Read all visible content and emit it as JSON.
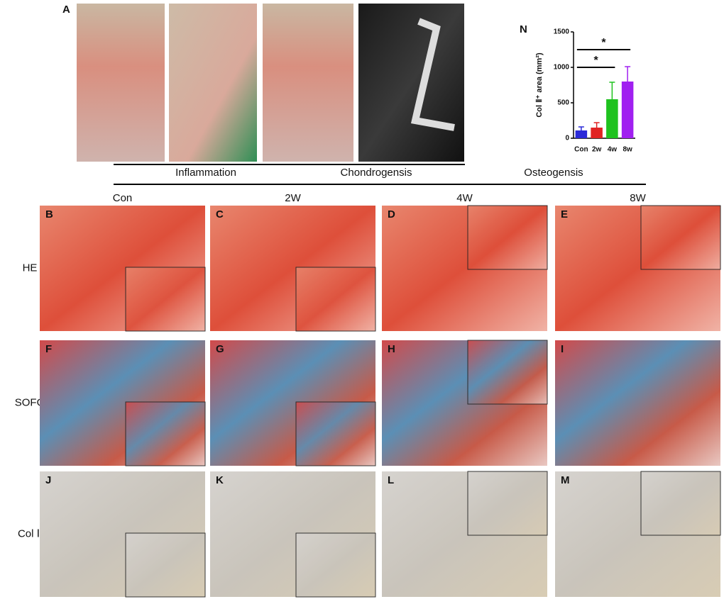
{
  "panel_a": "A",
  "stages": [
    "Inflammation",
    "Chondrogensis",
    "Osteogensis"
  ],
  "columns": [
    "Con",
    "2W",
    "4W",
    "8W"
  ],
  "rows": [
    "HE",
    "SOFG",
    "Col Ⅱ"
  ],
  "panels": [
    [
      "B",
      "C",
      "D",
      "E"
    ],
    [
      "F",
      "G",
      "H",
      "I"
    ],
    [
      "J",
      "K",
      "L",
      "M"
    ]
  ],
  "chart_data": {
    "type": "bar",
    "panel_label": "N",
    "y_label": "Col Ⅱ⁺ area (mm²)",
    "categories": [
      "Con",
      "2w",
      "4w",
      "8w"
    ],
    "values": [
      110,
      150,
      550,
      800
    ],
    "errors": [
      50,
      70,
      240,
      210
    ],
    "colors": [
      "#2a2ad8",
      "#e02424",
      "#1fc21f",
      "#a020f0"
    ],
    "ylim": [
      0,
      1500
    ],
    "yticks": [
      0,
      500,
      1000,
      1500
    ],
    "annotations": [
      "*",
      "*"
    ]
  }
}
